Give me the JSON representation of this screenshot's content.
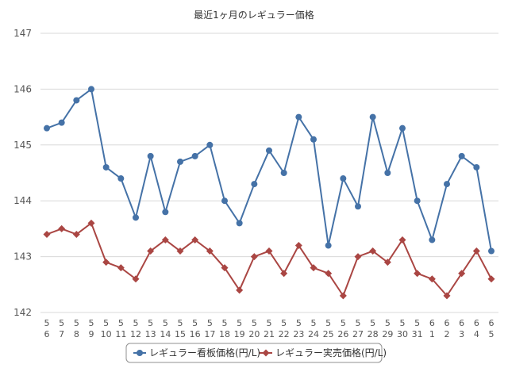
{
  "chart_data": {
    "type": "line",
    "title": "最近1ヶ月のレギュラー価格",
    "xlabel": "",
    "ylabel": "",
    "ylim": [
      142,
      147
    ],
    "yticks": [
      "142",
      "143",
      "144",
      "145",
      "146",
      "147"
    ],
    "grid": true,
    "legend_position": "bottom",
    "categories": [
      [
        "5",
        "6"
      ],
      [
        "5",
        "7"
      ],
      [
        "5",
        "8"
      ],
      [
        "5",
        "9"
      ],
      [
        "5",
        "10"
      ],
      [
        "5",
        "11"
      ],
      [
        "5",
        "12"
      ],
      [
        "5",
        "13"
      ],
      [
        "5",
        "14"
      ],
      [
        "5",
        "15"
      ],
      [
        "5",
        "16"
      ],
      [
        "5",
        "17"
      ],
      [
        "5",
        "18"
      ],
      [
        "5",
        "19"
      ],
      [
        "5",
        "20"
      ],
      [
        "5",
        "21"
      ],
      [
        "5",
        "22"
      ],
      [
        "5",
        "23"
      ],
      [
        "5",
        "24"
      ],
      [
        "5",
        "25"
      ],
      [
        "5",
        "26"
      ],
      [
        "5",
        "27"
      ],
      [
        "5",
        "28"
      ],
      [
        "5",
        "29"
      ],
      [
        "5",
        "30"
      ],
      [
        "5",
        "31"
      ],
      [
        "6",
        "1"
      ],
      [
        "6",
        "2"
      ],
      [
        "6",
        "3"
      ],
      [
        "6",
        "4"
      ],
      [
        "6",
        "5"
      ]
    ],
    "series": [
      {
        "name": "レギュラー看板価格(円/L)",
        "color": "#4572a7",
        "marker": "circle",
        "values": [
          145.3,
          145.4,
          145.8,
          146.0,
          144.6,
          144.4,
          143.7,
          144.8,
          143.8,
          144.7,
          144.8,
          145.0,
          144.0,
          143.6,
          144.3,
          144.9,
          144.5,
          145.5,
          145.1,
          143.2,
          144.4,
          143.9,
          145.5,
          144.5,
          145.3,
          144.0,
          143.3,
          144.3,
          144.8,
          144.6,
          143.1
        ]
      },
      {
        "name": "レギュラー実売価格(円/L)",
        "color": "#aa4643",
        "marker": "diamond",
        "values": [
          143.4,
          143.5,
          143.4,
          143.6,
          142.9,
          142.8,
          142.6,
          143.1,
          143.3,
          143.1,
          143.3,
          143.1,
          142.8,
          142.4,
          143.0,
          143.1,
          142.7,
          143.2,
          142.8,
          142.7,
          142.3,
          143.0,
          143.1,
          142.9,
          143.3,
          142.7,
          142.6,
          142.3,
          142.7,
          143.1,
          142.6
        ]
      }
    ]
  }
}
